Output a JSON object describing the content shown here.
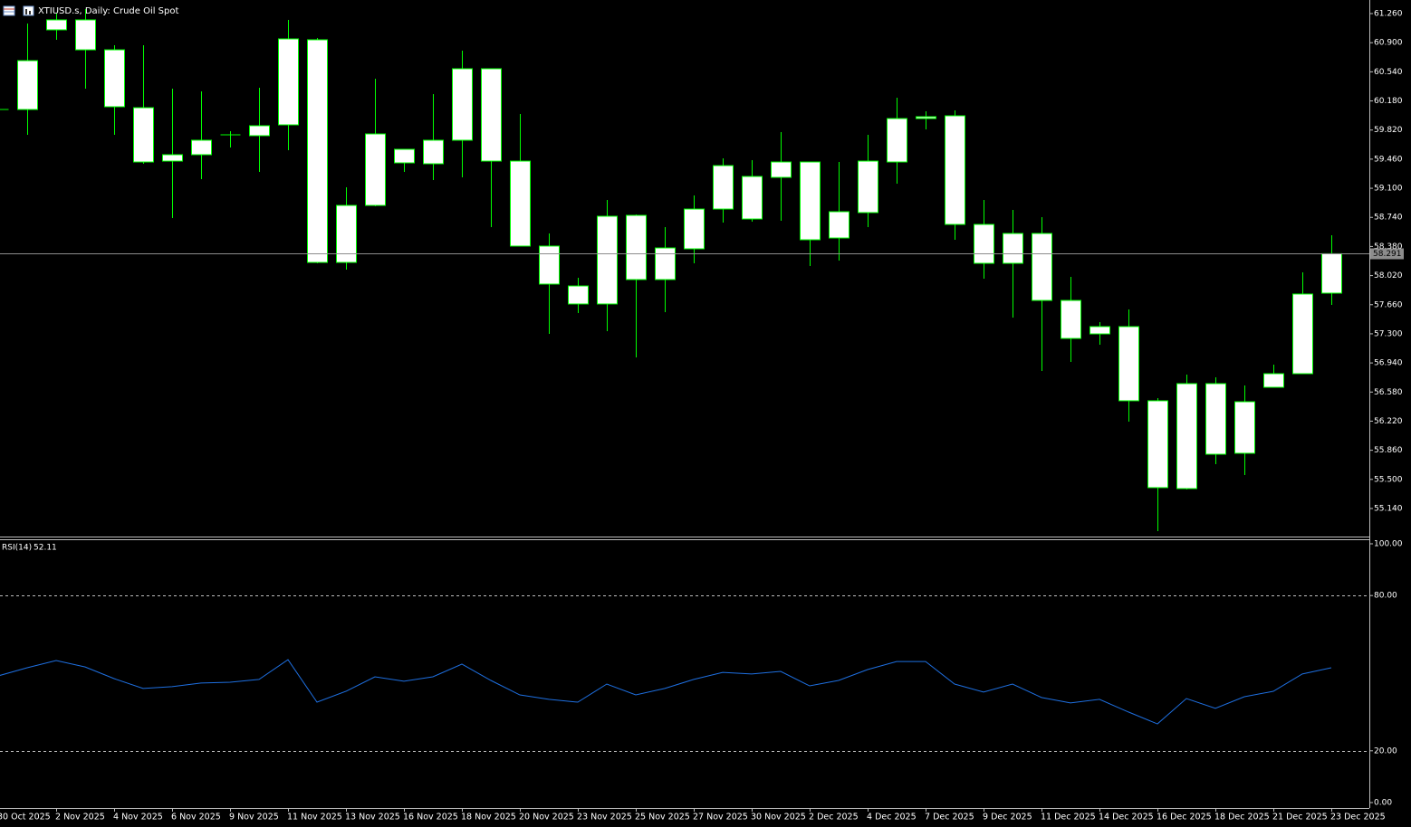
{
  "chart_data": {
    "type": "candlestick",
    "title": "XTIUSD.s, Daily:  Crude Oil Spot",
    "categories": [
      "30 Oct 2025",
      null,
      "2 Nov 2025",
      null,
      "4 Nov 2025",
      null,
      "6 Nov 2025",
      null,
      "9 Nov 2025",
      null,
      "11 Nov 2025",
      null,
      "13 Nov 2025",
      null,
      "16 Nov 2025",
      null,
      "18 Nov 2025",
      null,
      "20 Nov 2025",
      null,
      "23 Nov 2025",
      null,
      "25 Nov 2025",
      null,
      "27 Nov 2025",
      null,
      "30 Nov 2025",
      null,
      "2 Dec 2025",
      null,
      "4 Dec 2025",
      null,
      "7 Dec 2025",
      null,
      "9 Dec 2025",
      null,
      "11 Dec 2025",
      null,
      "14 Dec 2025",
      null,
      "16 Dec 2025",
      null,
      "18 Dec 2025",
      null,
      "21 Dec 2025",
      null,
      "23 Dec 2025"
    ],
    "open": [
      60.074,
      60.074,
      61.059,
      61.182,
      60.812,
      60.096,
      59.436,
      59.515,
      59.75,
      59.75,
      59.884,
      60.936,
      58.183,
      58.888,
      59.582,
      59.403,
      59.694,
      60.578,
      59.436,
      58.385,
      57.892,
      57.669,
      58.765,
      57.971,
      58.351,
      58.843,
      58.72,
      59.235,
      59.425,
      58.485,
      58.799,
      59.425,
      59.962,
      59.996,
      58.653,
      58.172,
      58.541,
      57.713,
      57.299,
      57.389,
      56.472,
      55.386,
      56.684,
      55.823,
      56.639,
      56.807,
      57.803
    ],
    "high": [
      60.141,
      61.137,
      61.26,
      61.316,
      60.868,
      60.868,
      60.331,
      60.298,
      59.806,
      60.343,
      61.182,
      60.958,
      59.112,
      60.454,
      59.582,
      60.264,
      60.801,
      60.578,
      60.018,
      58.541,
      57.993,
      58.955,
      58.776,
      58.62,
      59.011,
      59.47,
      59.448,
      59.794,
      59.425,
      59.425,
      59.761,
      60.22,
      60.052,
      60.063,
      58.955,
      58.832,
      58.743,
      58.004,
      57.445,
      57.602,
      56.505,
      56.796,
      56.762,
      56.662,
      56.919,
      58.06,
      58.519
    ],
    "low": [
      60.029,
      59.761,
      60.936,
      60.331,
      59.761,
      59.403,
      58.732,
      59.213,
      59.604,
      59.302,
      59.571,
      58.172,
      58.094,
      58.877,
      59.302,
      59.201,
      59.235,
      58.62,
      58.385,
      57.299,
      57.557,
      57.333,
      57.009,
      57.568,
      58.172,
      58.676,
      58.687,
      58.698,
      58.139,
      58.206,
      58.62,
      59.157,
      59.828,
      58.463,
      57.982,
      57.501,
      56.841,
      56.953,
      57.165,
      56.214,
      54.86,
      55.375,
      55.688,
      55.554,
      56.639,
      56.807,
      57.657
    ],
    "close": [
      60.074,
      60.678,
      61.182,
      60.812,
      60.108,
      59.425,
      59.515,
      59.694,
      59.761,
      59.873,
      60.947,
      58.183,
      58.888,
      59.772,
      59.414,
      59.694,
      60.578,
      59.436,
      58.385,
      57.915,
      57.669,
      58.754,
      57.971,
      58.362,
      58.843,
      59.38,
      59.246,
      59.425,
      58.463,
      58.81,
      59.436,
      59.962,
      59.985,
      58.653,
      58.172,
      58.541,
      57.713,
      57.243,
      57.389,
      56.472,
      55.398,
      56.684,
      55.811,
      56.46,
      56.807,
      57.792,
      58.291
    ],
    "candle_color": "#00ff00",
    "body_fill": "#ffffff",
    "current_price": 58.291,
    "ylim": [
      54.793,
      61.428
    ],
    "yticks": [
      {
        "value": 61.26,
        "label": "61.260"
      },
      {
        "value": 60.9,
        "label": "60.900"
      },
      {
        "value": 60.54,
        "label": "60.540"
      },
      {
        "value": 60.18,
        "label": "60.180"
      },
      {
        "value": 59.82,
        "label": "59.820"
      },
      {
        "value": 59.46,
        "label": "59.460"
      },
      {
        "value": 59.1,
        "label": "59.100"
      },
      {
        "value": 58.74,
        "label": "58.740"
      },
      {
        "value": 58.38,
        "label": "58.380"
      },
      {
        "value": 58.02,
        "label": "58.020"
      },
      {
        "value": 57.66,
        "label": "57.660"
      },
      {
        "value": 57.3,
        "label": "57.300"
      },
      {
        "value": 56.94,
        "label": "56.940"
      },
      {
        "value": 56.58,
        "label": "56.580"
      },
      {
        "value": 56.22,
        "label": "56.220"
      },
      {
        "value": 55.86,
        "label": "55.860"
      },
      {
        "value": 55.5,
        "label": "55.500"
      },
      {
        "value": 55.14,
        "label": "55.140"
      }
    ],
    "indicator": {
      "name": "RSI(14)",
      "color": "#1e6fe0",
      "values": [
        48.95,
        52.1,
        54.9,
        52.4,
        47.9,
        44.1,
        44.8,
        46.2,
        46.5,
        47.6,
        55.2,
        38.8,
        43.0,
        48.6,
        46.9,
        48.6,
        53.5,
        47.2,
        41.6,
        39.9,
        38.8,
        45.8,
        41.6,
        44.1,
        47.6,
        50.3,
        49.7,
        50.7,
        45.1,
        47.2,
        51.4,
        54.5,
        54.5,
        45.8,
        42.7,
        45.8,
        40.6,
        38.5,
        39.9,
        35.0,
        30.4,
        40.2,
        36.4,
        40.9,
        43.0,
        49.7,
        52.11
      ],
      "ylim": [
        -2.1,
        101.4
      ],
      "yticks": [
        {
          "value": 100,
          "label": "100.00"
        },
        {
          "value": 80,
          "label": "80.00"
        },
        {
          "value": 20,
          "label": "20.00"
        },
        {
          "value": 0,
          "label": "0.00"
        }
      ],
      "level_lines": [
        80,
        20
      ]
    }
  }
}
